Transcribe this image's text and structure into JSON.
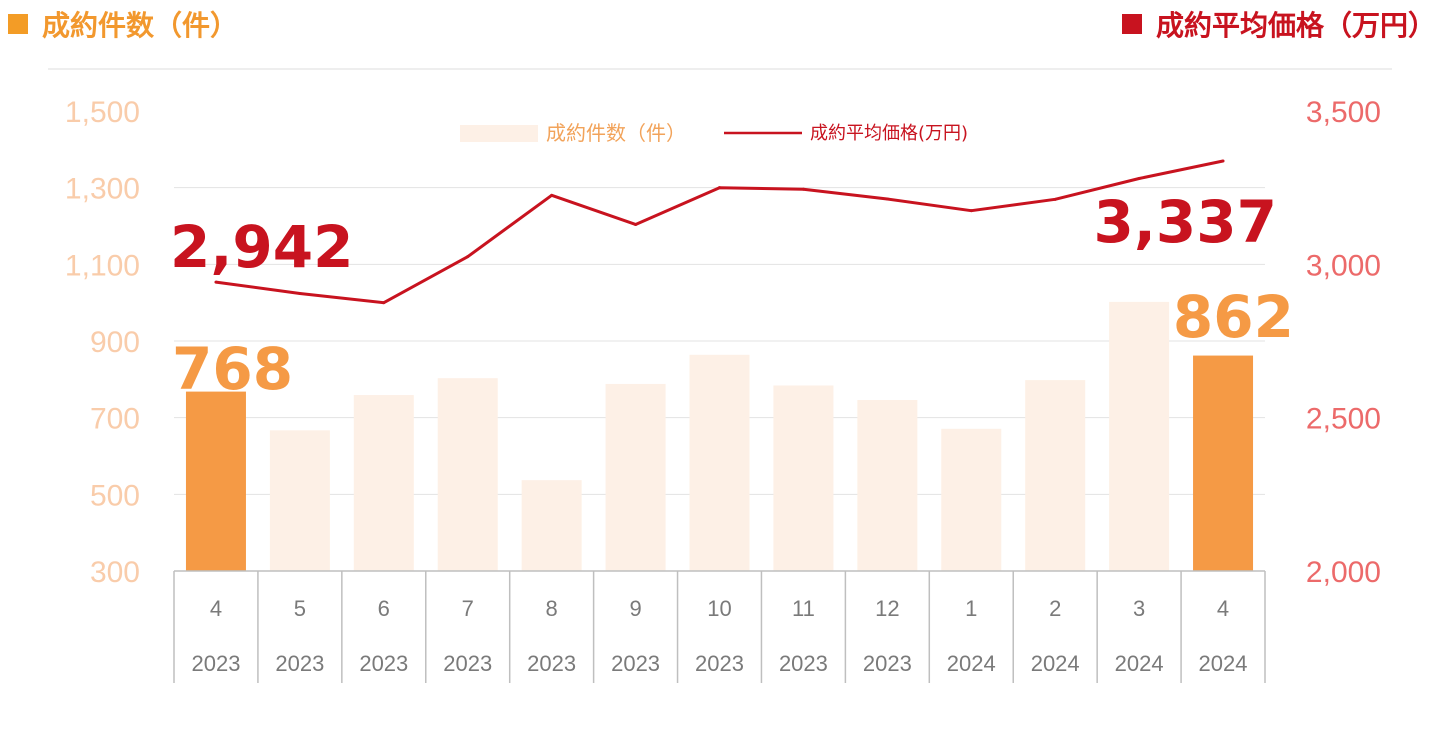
{
  "header": {
    "left_title": "成約件数（件）",
    "right_title": "成約平均価格（万円）"
  },
  "colors": {
    "bar_highlight": "#f59a45",
    "bar_normal": "#fdf0e6",
    "line": "#c8131f",
    "left_axis": "#f9ccaa",
    "right_axis": "#ec6a6a"
  },
  "chart_data": {
    "type": "bar+line",
    "categories": [
      {
        "month": "4",
        "year": "2023"
      },
      {
        "month": "5",
        "year": "2023"
      },
      {
        "month": "6",
        "year": "2023"
      },
      {
        "month": "7",
        "year": "2023"
      },
      {
        "month": "8",
        "year": "2023"
      },
      {
        "month": "9",
        "year": "2023"
      },
      {
        "month": "10",
        "year": "2023"
      },
      {
        "month": "11",
        "year": "2023"
      },
      {
        "month": "12",
        "year": "2023"
      },
      {
        "month": "1",
        "year": "2024"
      },
      {
        "month": "2",
        "year": "2024"
      },
      {
        "month": "3",
        "year": "2024"
      },
      {
        "month": "4",
        "year": "2024"
      }
    ],
    "series": [
      {
        "name": "成約件数（件）",
        "type": "bar",
        "axis": "left",
        "values": [
          768,
          667,
          759,
          803,
          537,
          788,
          864,
          784,
          746,
          671,
          798,
          1002,
          862
        ],
        "highlighted": [
          true,
          false,
          false,
          false,
          false,
          false,
          false,
          false,
          false,
          false,
          false,
          false,
          true
        ]
      },
      {
        "name": "成約平均価格(万円)",
        "type": "line",
        "axis": "right",
        "values": [
          2942,
          2905,
          2875,
          3025,
          3225,
          3130,
          3250,
          3245,
          3213,
          3175,
          3212,
          3280,
          3337
        ]
      }
    ],
    "left_axis": {
      "min": 300,
      "max": 1500,
      "ticks": [
        "1,500",
        "1,300",
        "1,100",
        "900",
        "700",
        "500",
        "300"
      ]
    },
    "right_axis": {
      "min": 2000,
      "max": 3500,
      "ticks": [
        "3,500",
        "3,000",
        "2,500",
        "2,000"
      ]
    },
    "callouts": {
      "bar_first": "768",
      "bar_last": "862",
      "line_first": "2,942",
      "line_last": "3,337"
    },
    "legend": {
      "bar_label": "成約件数（件）",
      "line_label": "成約平均価格(万円)",
      "placement": "top-center"
    },
    "grid": true
  }
}
